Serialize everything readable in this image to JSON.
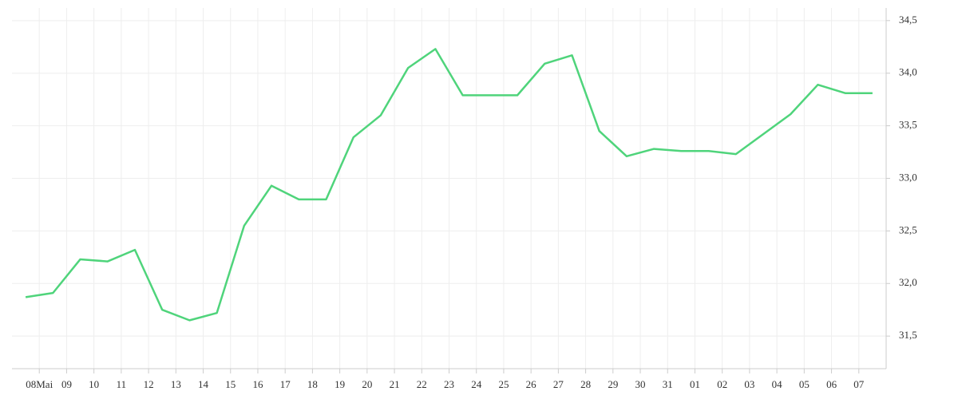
{
  "chart_data": {
    "type": "line",
    "x": [
      0,
      1,
      2,
      3,
      4,
      5,
      6,
      7,
      8,
      9,
      10,
      11,
      12,
      13,
      14,
      15,
      16,
      17,
      18,
      19,
      20,
      21,
      22,
      23,
      24,
      25,
      26,
      27,
      28,
      29,
      30,
      31
    ],
    "series": [
      {
        "color": "#4fd47b",
        "values": [
          31.87,
          31.91,
          32.23,
          32.21,
          32.32,
          31.75,
          31.65,
          31.72,
          32.55,
          32.93,
          32.8,
          32.8,
          33.39,
          33.6,
          34.05,
          34.23,
          33.79,
          33.79,
          33.79,
          34.09,
          34.17,
          33.45,
          33.21,
          33.28,
          33.26,
          33.26,
          33.23,
          33.42,
          33.61,
          33.89,
          33.81,
          33.81
        ]
      }
    ],
    "xlim": [
      -0.5,
      31.5
    ],
    "xticks": [
      {
        "value": 0.5,
        "label": "08Mai"
      },
      {
        "value": 1.5,
        "label": "09"
      },
      {
        "value": 2.5,
        "label": "10"
      },
      {
        "value": 3.5,
        "label": "11"
      },
      {
        "value": 4.5,
        "label": "12"
      },
      {
        "value": 5.5,
        "label": "13"
      },
      {
        "value": 6.5,
        "label": "14"
      },
      {
        "value": 7.5,
        "label": "15"
      },
      {
        "value": 8.5,
        "label": "16"
      },
      {
        "value": 9.5,
        "label": "17"
      },
      {
        "value": 10.5,
        "label": "18"
      },
      {
        "value": 11.5,
        "label": "19"
      },
      {
        "value": 12.5,
        "label": "20"
      },
      {
        "value": 13.5,
        "label": "21"
      },
      {
        "value": 14.5,
        "label": "22"
      },
      {
        "value": 15.5,
        "label": "23"
      },
      {
        "value": 16.5,
        "label": "24"
      },
      {
        "value": 17.5,
        "label": "25"
      },
      {
        "value": 18.5,
        "label": "26"
      },
      {
        "value": 19.5,
        "label": "27"
      },
      {
        "value": 20.5,
        "label": "28"
      },
      {
        "value": 21.5,
        "label": "29"
      },
      {
        "value": 22.5,
        "label": "30"
      },
      {
        "value": 23.5,
        "label": "31"
      },
      {
        "value": 24.5,
        "label": "01"
      },
      {
        "value": 25.5,
        "label": "02"
      },
      {
        "value": 26.5,
        "label": "03"
      },
      {
        "value": 27.5,
        "label": "04"
      },
      {
        "value": 28.5,
        "label": "05"
      },
      {
        "value": 29.5,
        "label": "06"
      },
      {
        "value": 30.5,
        "label": "07"
      }
    ],
    "ylim": [
      31.19,
      34.62
    ],
    "yticks": [
      {
        "value": 31.5,
        "label": "31,5"
      },
      {
        "value": 32,
        "label": "32,0"
      },
      {
        "value": 32.5,
        "label": "32,5"
      },
      {
        "value": 33,
        "label": "33,0"
      },
      {
        "value": 33.5,
        "label": "33,5"
      },
      {
        "value": 34,
        "label": "34,0"
      },
      {
        "value": 34.5,
        "label": "34,5"
      }
    ],
    "grid": true
  }
}
